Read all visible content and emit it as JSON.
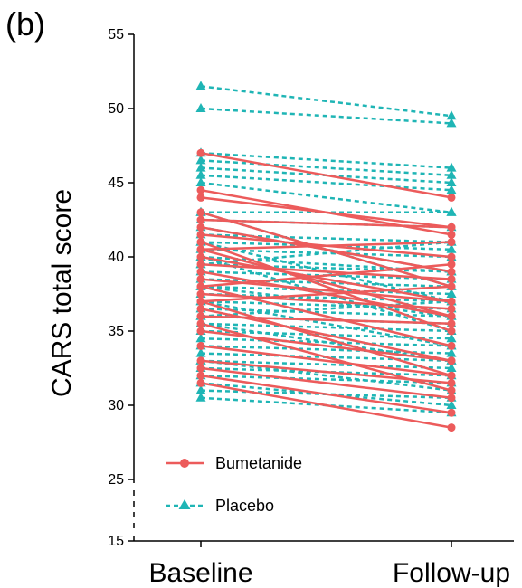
{
  "panel_label": "(b)",
  "chart_data": {
    "type": "line",
    "panel": "(b)",
    "categories": [
      "Baseline",
      "Follow-up"
    ],
    "ylabel": "CARS total score",
    "xlabel": "",
    "ylim": [
      15,
      55
    ],
    "axis_break": [
      15,
      25
    ],
    "yticks": [
      15,
      25,
      30,
      35,
      40,
      45,
      50,
      55
    ],
    "grid": false,
    "legend_position": "bottom-left",
    "legend": [
      {
        "name": "Bumetanide",
        "color": "#ec5b5b",
        "marker": "circle",
        "line": "solid"
      },
      {
        "name": "Placebo",
        "color": "#1fb5b5",
        "marker": "triangle",
        "line": "dashed"
      }
    ],
    "series": [
      {
        "name": "Placebo",
        "color": "#1fb5b5",
        "marker": "triangle",
        "line": "dashed",
        "pairs": [
          [
            51.5,
            49.5
          ],
          [
            50,
            49
          ],
          [
            47,
            46
          ],
          [
            46.5,
            45.5
          ],
          [
            46,
            45
          ],
          [
            45.5,
            44.5
          ],
          [
            45,
            43
          ],
          [
            43,
            43
          ],
          [
            42.5,
            42
          ],
          [
            41.5,
            41
          ],
          [
            41,
            40.5
          ],
          [
            40.5,
            40
          ],
          [
            40,
            39
          ],
          [
            39.5,
            39
          ],
          [
            39,
            38.5
          ],
          [
            38.5,
            38
          ],
          [
            38,
            37.5
          ],
          [
            37.5,
            37
          ],
          [
            37,
            36.5
          ],
          [
            36.5,
            36
          ],
          [
            36,
            35.5
          ],
          [
            35.5,
            35
          ],
          [
            35,
            34.5
          ],
          [
            34.5,
            34
          ],
          [
            34,
            33.5
          ],
          [
            33.5,
            33
          ],
          [
            33,
            32.5
          ],
          [
            32.5,
            32
          ],
          [
            32,
            31.5
          ],
          [
            31,
            30.5
          ],
          [
            30.5,
            29.5
          ],
          [
            31.5,
            30
          ],
          [
            43,
            38
          ],
          [
            42,
            39
          ],
          [
            39.5,
            41
          ],
          [
            38,
            36
          ],
          [
            36,
            37
          ],
          [
            35.5,
            33
          ],
          [
            41,
            37
          ],
          [
            40,
            35
          ],
          [
            37,
            34
          ],
          [
            33,
            31
          ]
        ]
      },
      {
        "name": "Bumetanide",
        "color": "#ec5b5b",
        "marker": "circle",
        "line": "solid",
        "pairs": [
          [
            47,
            44
          ],
          [
            44.5,
            41.5
          ],
          [
            44,
            42
          ],
          [
            43,
            38
          ],
          [
            42.5,
            42
          ],
          [
            42,
            39
          ],
          [
            41.5,
            40
          ],
          [
            41,
            35
          ],
          [
            40.5,
            41
          ],
          [
            40,
            37
          ],
          [
            39.5,
            38.5
          ],
          [
            39,
            36
          ],
          [
            38.5,
            37
          ],
          [
            38,
            34
          ],
          [
            37.5,
            36.5
          ],
          [
            37,
            38
          ],
          [
            36.5,
            33
          ],
          [
            36,
            35.5
          ],
          [
            35.5,
            31
          ],
          [
            35,
            33
          ],
          [
            34,
            32
          ],
          [
            33,
            31.5
          ],
          [
            32.5,
            30.5
          ],
          [
            32,
            29.5
          ],
          [
            31.5,
            28.5
          ],
          [
            40.5,
            36
          ],
          [
            38,
            39.5
          ],
          [
            37,
            32
          ]
        ]
      }
    ]
  }
}
